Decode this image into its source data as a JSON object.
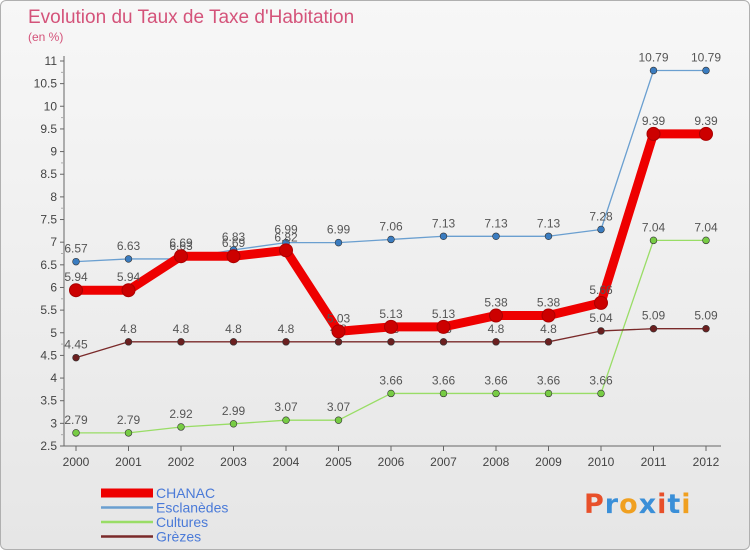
{
  "chart_data": {
    "type": "line",
    "title": "Evolution du Taux de Taxe d'Habitation",
    "subtitle": "(en %)",
    "categories": [
      "2000",
      "2001",
      "2002",
      "2003",
      "2004",
      "2005",
      "2006",
      "2007",
      "2008",
      "2009",
      "2010",
      "2011",
      "2012"
    ],
    "ylim": [
      2.5,
      11
    ],
    "yticks": [
      "2.5",
      "3",
      "3.5",
      "4",
      "4.5",
      "5",
      "5.5",
      "6",
      "6.5",
      "7",
      "7.5",
      "8",
      "8.5",
      "9",
      "9.5",
      "10",
      "10.5",
      "11"
    ],
    "grid": false,
    "legend_position": "bottom-left",
    "series": [
      {
        "name": "CHANAC",
        "color": "#ee0000",
        "marker_color": "#cc0000",
        "values": [
          5.94,
          5.94,
          6.69,
          6.69,
          6.82,
          5.03,
          5.13,
          5.13,
          5.38,
          5.38,
          5.66,
          9.39,
          9.39
        ],
        "labels": [
          "5.94",
          "5.94",
          "6.69",
          "6.69",
          "6.82",
          "5.03",
          "5.13",
          "5.13",
          "5.38",
          "5.38",
          "5.66",
          "9.39",
          "9.39"
        ]
      },
      {
        "name": "Esclanèdes",
        "color": "#6a9fd0",
        "marker_color": "#3a7cc0",
        "values": [
          6.57,
          6.63,
          6.63,
          6.83,
          6.99,
          6.99,
          7.06,
          7.13,
          7.13,
          7.13,
          7.28,
          10.79,
          10.79
        ],
        "labels": [
          "6.57",
          "6.63",
          "6.63",
          "6.83",
          "6.99",
          "6.99",
          "7.06",
          "7.13",
          "7.13",
          "7.13",
          "7.28",
          "10.79",
          "10.79"
        ]
      },
      {
        "name": "Cultures",
        "color": "#99dd66",
        "marker_color": "#77cc44",
        "values": [
          2.79,
          2.79,
          2.92,
          2.99,
          3.07,
          3.07,
          3.66,
          3.66,
          3.66,
          3.66,
          3.66,
          7.04,
          7.04
        ],
        "labels": [
          "2.79",
          "2.79",
          "2.92",
          "2.99",
          "3.07",
          "3.07",
          "3.66",
          "3.66",
          "3.66",
          "3.66",
          "3.66",
          "7.04",
          "7.04"
        ]
      },
      {
        "name": "Grèzes",
        "color": "#7a2a2a",
        "marker_color": "#6b1f1f",
        "values": [
          4.45,
          4.8,
          4.8,
          4.8,
          4.8,
          4.8,
          4.8,
          4.8,
          4.8,
          4.8,
          5.04,
          5.09,
          5.09
        ],
        "labels": [
          "4.45",
          "4.8",
          "4.8",
          "4.8",
          "4.8",
          "4.8",
          "4.8",
          "4.8",
          "4.8",
          "4.8",
          "5.04",
          "5.09",
          "5.09"
        ]
      }
    ]
  },
  "legend_color": "#4a7ad8",
  "logo": {
    "letters": [
      "P",
      "r",
      "o",
      "x",
      "i",
      "t",
      "i"
    ],
    "colors": [
      "#e8502a",
      "#3a8fd8",
      "#f0a020",
      "#3a8fd8",
      "#e8502a",
      "#3a8fd8",
      "#f0a020"
    ]
  }
}
